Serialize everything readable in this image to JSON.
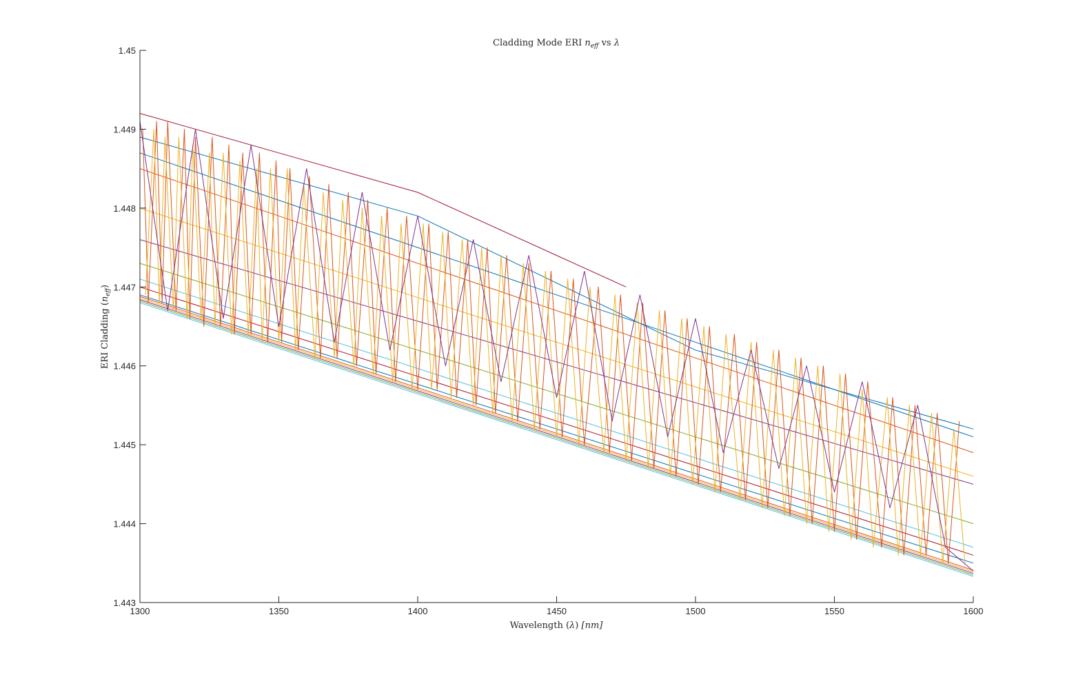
{
  "chart_data": {
    "type": "line",
    "title": "Cladding Mode ERI n_eff vs λ",
    "title_parts": {
      "prefix": "Cladding Mode ERI ",
      "math": "n",
      "math_sub": "eff",
      "suffix": " vs ",
      "lambda": "λ"
    },
    "xlabel": "Wavelength (λ) [nm]",
    "xlabel_parts": {
      "text": "Wavelength (",
      "lambda": "λ",
      "close": ") ",
      "unit": "[nm]"
    },
    "ylabel": "ERI Cladding (n_eff)",
    "ylabel_parts": {
      "text": "ERI Cladding (",
      "math": "n",
      "math_sub": "eff",
      "close": ")"
    },
    "xlim": [
      1300,
      1600
    ],
    "ylim": [
      1.443,
      1.45
    ],
    "xticks": [
      "1300",
      "1350",
      "1400",
      "1450",
      "1500",
      "1550",
      "1600"
    ],
    "yticks": [
      "1.443",
      "1.444",
      "1.445",
      "1.446",
      "1.447",
      "1.448",
      "1.449",
      "1.45"
    ],
    "grid": false,
    "legend": "none",
    "colors": [
      "#0072BD",
      "#D95319",
      "#EDB120",
      "#7E2F8E",
      "#77AC30",
      "#4DBEEE",
      "#A2142F"
    ],
    "series": [
      {
        "x": [
          1300,
          1600
        ],
        "y": [
          1.4487,
          1.4451
        ]
      },
      {
        "x": [
          1300,
          1600
        ],
        "y": [
          1.4485,
          1.4449
        ]
      },
      {
        "x": [
          1300,
          1600
        ],
        "y": [
          1.448,
          1.4446
        ]
      },
      {
        "x": [
          1300,
          1600
        ],
        "y": [
          1.4476,
          1.4445
        ]
      },
      {
        "x": [
          1300,
          1600
        ],
        "y": [
          1.4473,
          1.444
        ]
      },
      {
        "x": [
          1300,
          1600
        ],
        "y": [
          1.4471,
          1.4437
        ]
      },
      {
        "x": [
          1300,
          1600
        ],
        "y": [
          1.447,
          1.4436
        ]
      },
      {
        "x": [
          1300,
          1600
        ],
        "y": [
          1.4469,
          1.4435
        ]
      },
      {
        "x": [
          1300,
          1600
        ],
        "y": [
          1.44688,
          1.44341
        ]
      },
      {
        "x": [
          1300,
          1600
        ],
        "y": [
          1.44686,
          1.44339
        ]
      },
      {
        "x": [
          1300,
          1600
        ],
        "y": [
          1.44684,
          1.44337
        ]
      },
      {
        "x": [
          1300,
          1600
        ],
        "y": [
          1.44682,
          1.44335
        ]
      },
      {
        "x": [
          1300,
          1600
        ],
        "y": [
          1.4468,
          1.44333
        ]
      },
      {
        "x": [
          1300,
          1350,
          1400,
          1450,
          1475
        ],
        "y": [
          1.4492,
          1.4487,
          1.4482,
          1.4474,
          1.447
        ]
      },
      {
        "x": [
          1300,
          1400,
          1500,
          1600
        ],
        "y": [
          1.4489,
          1.4479,
          1.4462,
          1.4452
        ]
      },
      {
        "x": [
          1301,
          1303,
          1306,
          1308,
          1310,
          1313,
          1316,
          1318,
          1320,
          1323,
          1326,
          1329,
          1332,
          1334,
          1337,
          1340,
          1343,
          1346,
          1349,
          1351,
          1354,
          1357,
          1361,
          1365,
          1368,
          1371,
          1375,
          1378,
          1382,
          1385,
          1389,
          1392,
          1396,
          1400,
          1404,
          1407,
          1411,
          1414,
          1418,
          1421,
          1425,
          1428,
          1432,
          1436,
          1440,
          1444,
          1448,
          1452,
          1456,
          1460,
          1465,
          1469,
          1473,
          1477,
          1481,
          1485,
          1489,
          1493,
          1497,
          1501,
          1505,
          1509,
          1514,
          1518,
          1522,
          1526,
          1530,
          1534,
          1538,
          1542,
          1546,
          1550,
          1554,
          1558,
          1562,
          1567,
          1571,
          1575,
          1579,
          1583,
          1587,
          1591,
          1595
        ],
        "y": [
          1.449,
          1.4468,
          1.4491,
          1.4468,
          1.4491,
          1.4467,
          1.449,
          1.4466,
          1.4489,
          1.4465,
          1.4489,
          1.4465,
          1.4488,
          1.4464,
          1.4487,
          1.4464,
          1.4487,
          1.4463,
          1.4486,
          1.4463,
          1.4485,
          1.4462,
          1.4484,
          1.4461,
          1.4483,
          1.4461,
          1.4482,
          1.446,
          1.4481,
          1.4459,
          1.448,
          1.4458,
          1.4479,
          1.4457,
          1.4478,
          1.4457,
          1.4477,
          1.4456,
          1.4476,
          1.4455,
          1.4475,
          1.4454,
          1.4474,
          1.4453,
          1.4473,
          1.4452,
          1.4472,
          1.4451,
          1.4471,
          1.445,
          1.447,
          1.4449,
          1.4469,
          1.4448,
          1.4468,
          1.4447,
          1.4467,
          1.4446,
          1.4466,
          1.4445,
          1.4465,
          1.4444,
          1.4464,
          1.4443,
          1.4463,
          1.4442,
          1.4462,
          1.4441,
          1.4461,
          1.444,
          1.446,
          1.4439,
          1.4459,
          1.4438,
          1.4458,
          1.4437,
          1.4456,
          1.4436,
          1.4455,
          1.4436,
          1.4454,
          1.4435,
          1.4453
        ]
      },
      {
        "x": [
          1302,
          1305,
          1307,
          1309,
          1312,
          1314,
          1317,
          1319,
          1322,
          1325,
          1327,
          1330,
          1333,
          1336,
          1339,
          1342,
          1344,
          1347,
          1350,
          1353,
          1356,
          1359,
          1363,
          1366,
          1370,
          1373,
          1377,
          1380,
          1384,
          1387,
          1391,
          1394,
          1398,
          1402,
          1405,
          1409,
          1412,
          1416,
          1420,
          1423,
          1427,
          1430,
          1434,
          1438,
          1442,
          1446,
          1450,
          1454,
          1458,
          1462,
          1467,
          1471,
          1475,
          1479,
          1483,
          1487,
          1491,
          1495,
          1499,
          1503,
          1507,
          1511,
          1516,
          1520,
          1524,
          1528,
          1532,
          1536,
          1540,
          1544,
          1548,
          1552,
          1556,
          1560,
          1564,
          1569,
          1573,
          1577,
          1581,
          1585,
          1589,
          1593,
          1597
        ],
        "y": [
          1.4469,
          1.449,
          1.4468,
          1.4489,
          1.4467,
          1.4489,
          1.4466,
          1.4488,
          1.4466,
          1.4487,
          1.4465,
          1.4487,
          1.4464,
          1.4486,
          1.4464,
          1.4485,
          1.4463,
          1.4485,
          1.4463,
          1.4485,
          1.4462,
          1.4483,
          1.4461,
          1.4482,
          1.4461,
          1.4481,
          1.446,
          1.448,
          1.4459,
          1.4479,
          1.4458,
          1.4478,
          1.4457,
          1.4478,
          1.4457,
          1.4477,
          1.4456,
          1.4476,
          1.4455,
          1.4475,
          1.4454,
          1.4474,
          1.4453,
          1.4473,
          1.4452,
          1.4472,
          1.4451,
          1.4471,
          1.445,
          1.447,
          1.4449,
          1.4469,
          1.4448,
          1.4468,
          1.4447,
          1.4467,
          1.4446,
          1.4466,
          1.4445,
          1.4465,
          1.4444,
          1.4464,
          1.4443,
          1.4463,
          1.4442,
          1.4462,
          1.4441,
          1.4461,
          1.444,
          1.446,
          1.4439,
          1.4459,
          1.4438,
          1.4457,
          1.4437,
          1.4456,
          1.4436,
          1.4455,
          1.4436,
          1.4454,
          1.4435,
          1.4452,
          1.4435
        ]
      },
      {
        "x": [
          1300,
          1310,
          1320,
          1330,
          1340,
          1350,
          1360,
          1370,
          1380,
          1390,
          1400,
          1410,
          1420,
          1430,
          1440,
          1450,
          1460,
          1470,
          1480,
          1490,
          1500,
          1510,
          1520,
          1530,
          1540,
          1550,
          1560,
          1570,
          1580,
          1590,
          1600
        ],
        "y": [
          1.4491,
          1.4467,
          1.449,
          1.4466,
          1.4488,
          1.4465,
          1.4485,
          1.4463,
          1.4482,
          1.4462,
          1.4479,
          1.446,
          1.4476,
          1.4458,
          1.4474,
          1.4456,
          1.4472,
          1.4453,
          1.4469,
          1.4451,
          1.4466,
          1.4449,
          1.4462,
          1.4447,
          1.446,
          1.4444,
          1.4458,
          1.4442,
          1.4455,
          1.4437,
          1.4434
        ]
      }
    ]
  }
}
